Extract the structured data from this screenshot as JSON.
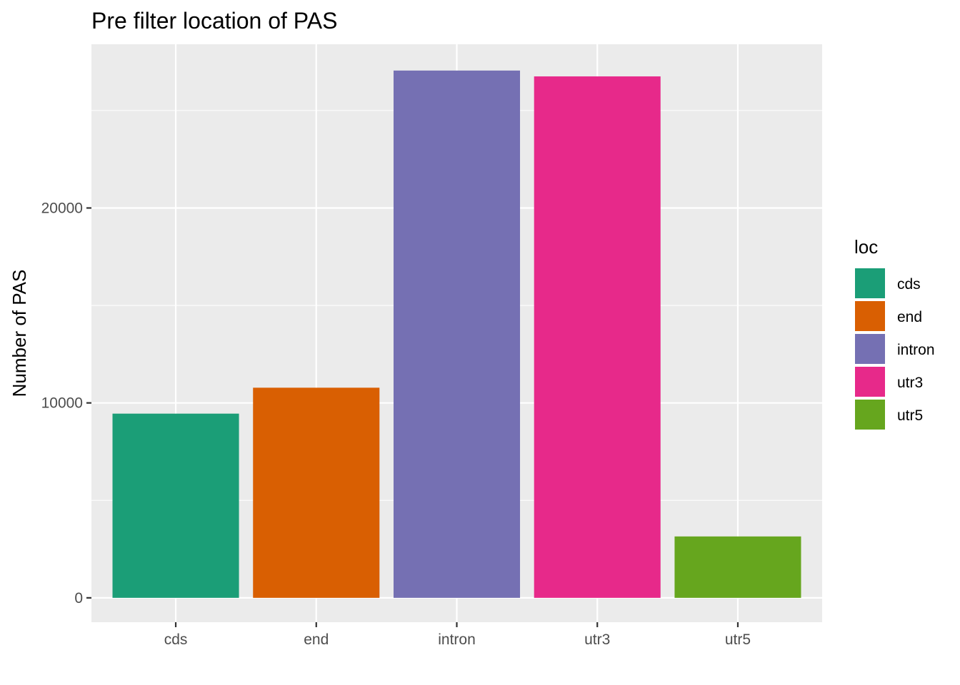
{
  "chart_data": {
    "type": "bar",
    "title": "Pre filter location of PAS",
    "xlabel": "",
    "ylabel": "Number of PAS",
    "categories": [
      "cds",
      "end",
      "intron",
      "utr3",
      "utr5"
    ],
    "values": [
      9450,
      10780,
      27050,
      26750,
      3150
    ],
    "colors": [
      "#1b9e77",
      "#d95f02",
      "#7570b3",
      "#e7298a",
      "#66a61e"
    ],
    "ylim": [
      -1250,
      28400
    ],
    "y_ticks": [
      0,
      10000,
      20000
    ],
    "y_tick_labels": [
      "0",
      "10000",
      "20000"
    ],
    "grid": true,
    "panel_background": "#ebebeb",
    "legend": {
      "title": "loc",
      "position": "right",
      "entries": [
        "cds",
        "end",
        "intron",
        "utr3",
        "utr5"
      ]
    }
  }
}
